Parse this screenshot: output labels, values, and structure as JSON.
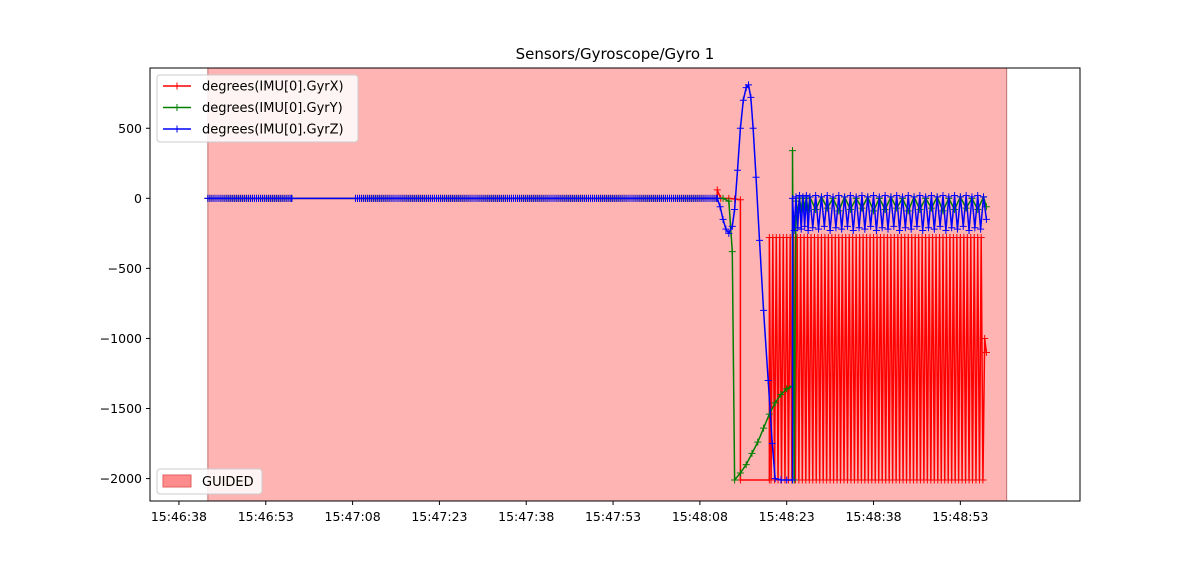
{
  "chart_data": {
    "type": "line",
    "title": "Sensors/Gyroscope/Gyro 1",
    "xlabel": "",
    "ylabel": "",
    "x_ticks": [
      "15:46:38",
      "15:46:53",
      "15:47:08",
      "15:47:23",
      "15:47:38",
      "15:47:53",
      "15:48:08",
      "15:48:23",
      "15:48:38",
      "15:48:53"
    ],
    "y_ticks": [
      "500",
      "0",
      "−500",
      "−1000",
      "−1500",
      "−2000"
    ],
    "ylim": [
      -2160,
      930
    ],
    "series": [
      {
        "name": "degrees(IMU[0].GyrX)",
        "color": "#ff0000",
        "points": [
          [
            0,
            0
          ],
          [
            14.5,
            0
          ],
          [
            25.5,
            0
          ],
          [
            88,
            0
          ],
          [
            88,
            60
          ],
          [
            88.6,
            0
          ],
          [
            90,
            0
          ],
          [
            91,
            -5
          ],
          [
            92,
            -10
          ],
          [
            92,
            -2010
          ],
          [
            97,
            -2010
          ],
          [
            97,
            -280
          ],
          [
            97.3,
            -2010
          ],
          [
            97.6,
            -280
          ],
          [
            97.9,
            -2010
          ],
          [
            98.2,
            -280
          ],
          [
            98.5,
            -2010
          ],
          [
            98.8,
            -280
          ],
          [
            99.1,
            -2010
          ],
          [
            99.4,
            -280
          ],
          [
            99.7,
            -2010
          ],
          [
            100,
            -280
          ],
          [
            100.3,
            -2010
          ],
          [
            100.6,
            -280
          ],
          [
            100.9,
            -2010
          ],
          [
            101.2,
            -280
          ],
          [
            101.5,
            -2010
          ],
          [
            101.8,
            -280
          ],
          [
            102.1,
            -2010
          ],
          [
            102.4,
            -280
          ],
          [
            102.7,
            -2010
          ],
          [
            103,
            -280
          ],
          [
            103.3,
            -2010
          ],
          [
            103.6,
            -280
          ],
          [
            103.9,
            -2010
          ],
          [
            104.2,
            -280
          ],
          [
            104.5,
            -2010
          ],
          [
            104.8,
            -280
          ],
          [
            105.1,
            -2010
          ],
          [
            105.4,
            -280
          ],
          [
            105.7,
            -2010
          ],
          [
            106,
            -280
          ],
          [
            106.3,
            -2010
          ],
          [
            106.6,
            -280
          ],
          [
            106.9,
            -2010
          ],
          [
            107.2,
            -280
          ],
          [
            107.5,
            -2010
          ],
          [
            107.8,
            -280
          ],
          [
            108.1,
            -2010
          ],
          [
            108.4,
            -280
          ],
          [
            108.7,
            -2010
          ],
          [
            109,
            -280
          ],
          [
            109.3,
            -2010
          ],
          [
            109.6,
            -280
          ],
          [
            109.9,
            -2010
          ],
          [
            110.2,
            -280
          ],
          [
            110.5,
            -2010
          ],
          [
            110.8,
            -280
          ],
          [
            111.1,
            -2010
          ],
          [
            111.4,
            -280
          ],
          [
            111.7,
            -2010
          ],
          [
            112,
            -280
          ],
          [
            112.3,
            -2010
          ],
          [
            112.6,
            -280
          ],
          [
            112.9,
            -2010
          ],
          [
            113.2,
            -280
          ],
          [
            113.5,
            -2010
          ],
          [
            113.8,
            -280
          ],
          [
            114.1,
            -2010
          ],
          [
            114.4,
            -280
          ],
          [
            114.7,
            -2010
          ],
          [
            115,
            -280
          ],
          [
            115.3,
            -2010
          ],
          [
            115.6,
            -280
          ],
          [
            115.9,
            -2010
          ],
          [
            116.2,
            -280
          ],
          [
            116.5,
            -2010
          ],
          [
            116.8,
            -280
          ],
          [
            117.1,
            -2010
          ],
          [
            117.4,
            -280
          ],
          [
            117.7,
            -2010
          ],
          [
            118,
            -280
          ],
          [
            118.3,
            -2010
          ],
          [
            118.6,
            -280
          ],
          [
            118.9,
            -2010
          ],
          [
            119.2,
            -280
          ],
          [
            119.5,
            -2010
          ],
          [
            119.8,
            -280
          ],
          [
            120.1,
            -2010
          ],
          [
            120.4,
            -280
          ],
          [
            120.7,
            -2010
          ],
          [
            121,
            -280
          ],
          [
            121.3,
            -2010
          ],
          [
            121.6,
            -280
          ],
          [
            121.9,
            -2010
          ],
          [
            122.2,
            -280
          ],
          [
            122.5,
            -2010
          ],
          [
            122.8,
            -280
          ],
          [
            123.1,
            -2010
          ],
          [
            123.4,
            -280
          ],
          [
            123.7,
            -2010
          ],
          [
            124,
            -280
          ],
          [
            124.3,
            -2010
          ],
          [
            124.6,
            -280
          ],
          [
            124.9,
            -2010
          ],
          [
            125.2,
            -280
          ],
          [
            125.5,
            -2010
          ],
          [
            125.8,
            -280
          ],
          [
            126.1,
            -2010
          ],
          [
            126.4,
            -280
          ],
          [
            126.7,
            -2010
          ],
          [
            127,
            -280
          ],
          [
            127.3,
            -2010
          ],
          [
            127.6,
            -280
          ],
          [
            127.9,
            -2010
          ],
          [
            128.2,
            -280
          ],
          [
            128.5,
            -2010
          ],
          [
            128.8,
            -280
          ],
          [
            129.1,
            -2010
          ],
          [
            129.4,
            -280
          ],
          [
            129.7,
            -2010
          ],
          [
            130,
            -280
          ],
          [
            130.3,
            -2010
          ],
          [
            130.6,
            -280
          ],
          [
            130.9,
            -2010
          ],
          [
            131.2,
            -280
          ],
          [
            131.5,
            -2010
          ],
          [
            131.8,
            -280
          ],
          [
            132.1,
            -2010
          ],
          [
            132.4,
            -280
          ],
          [
            132.7,
            -2010
          ],
          [
            133,
            -280
          ],
          [
            133.3,
            -2010
          ],
          [
            133.6,
            -280
          ],
          [
            133.9,
            -2010
          ],
          [
            134.2,
            -1000
          ],
          [
            134.5,
            -1100
          ]
        ]
      },
      {
        "name": "degrees(IMU[0].GyrY)",
        "color": "#008000",
        "points": [
          [
            0,
            0
          ],
          [
            14.5,
            0
          ],
          [
            25.5,
            0
          ],
          [
            89,
            0
          ],
          [
            90,
            -20
          ],
          [
            90.6,
            -380
          ],
          [
            91,
            -2010
          ],
          [
            92,
            -1960
          ],
          [
            93,
            -1900
          ],
          [
            94,
            -1820
          ],
          [
            95,
            -1740
          ],
          [
            96,
            -1640
          ],
          [
            97,
            -1540
          ],
          [
            98,
            -1460
          ],
          [
            99,
            -1400
          ],
          [
            100,
            -1360
          ],
          [
            101,
            -1340
          ],
          [
            101,
            340
          ],
          [
            101.3,
            -2010
          ],
          [
            101.6,
            -20
          ],
          [
            101.9,
            -100
          ],
          [
            102.2,
            0
          ],
          [
            102.5,
            -80
          ],
          [
            102.8,
            10
          ],
          [
            103.1,
            -60
          ],
          [
            103.4,
            0
          ],
          [
            103.7,
            -90
          ],
          [
            104,
            10
          ],
          [
            105,
            -80
          ],
          [
            106,
            10
          ],
          [
            107,
            -70
          ],
          [
            108,
            0
          ],
          [
            109,
            -90
          ],
          [
            110,
            10
          ],
          [
            111,
            -80
          ],
          [
            112,
            0
          ],
          [
            113,
            -70
          ],
          [
            114,
            10
          ],
          [
            115,
            -90
          ],
          [
            116,
            0
          ],
          [
            117,
            -80
          ],
          [
            118,
            10
          ],
          [
            119,
            -70
          ],
          [
            120,
            0
          ],
          [
            121,
            -90
          ],
          [
            122,
            10
          ],
          [
            123,
            -80
          ],
          [
            124,
            0
          ],
          [
            125,
            -70
          ],
          [
            126,
            10
          ],
          [
            127,
            -90
          ],
          [
            128,
            0
          ],
          [
            129,
            -80
          ],
          [
            130,
            10
          ],
          [
            131,
            -70
          ],
          [
            132,
            0
          ],
          [
            133,
            -80
          ],
          [
            134,
            10
          ],
          [
            134.5,
            -60
          ]
        ]
      },
      {
        "name": "degrees(IMU[0].GyrZ)",
        "color": "#0000ff",
        "points": [
          [
            0,
            0
          ],
          [
            14.5,
            0
          ],
          [
            25.5,
            0
          ],
          [
            88,
            0
          ],
          [
            88.5,
            -60
          ],
          [
            89,
            -150
          ],
          [
            89.5,
            -220
          ],
          [
            90,
            -250
          ],
          [
            90.6,
            -200
          ],
          [
            91,
            -80
          ],
          [
            91.5,
            200
          ],
          [
            92,
            500
          ],
          [
            92.5,
            700
          ],
          [
            93,
            790
          ],
          [
            93.4,
            810
          ],
          [
            93.8,
            720
          ],
          [
            94.2,
            500
          ],
          [
            94.7,
            150
          ],
          [
            95.3,
            -300
          ],
          [
            96,
            -800
          ],
          [
            96.8,
            -1300
          ],
          [
            97.5,
            -1750
          ],
          [
            98,
            -2000
          ],
          [
            99,
            -2010
          ],
          [
            100,
            -2010
          ],
          [
            101,
            -2010
          ],
          [
            101,
            0
          ],
          [
            101.3,
            -230
          ],
          [
            101.6,
            10
          ],
          [
            101.9,
            -210
          ],
          [
            102.2,
            20
          ],
          [
            102.5,
            -220
          ],
          [
            102.8,
            10
          ],
          [
            103.1,
            -200
          ],
          [
            103.4,
            20
          ],
          [
            103.7,
            -230
          ],
          [
            104,
            10
          ],
          [
            104.5,
            -210
          ],
          [
            105,
            20
          ],
          [
            105.5,
            -220
          ],
          [
            106,
            10
          ],
          [
            106.5,
            -200
          ],
          [
            107,
            20
          ],
          [
            107.5,
            -230
          ],
          [
            108,
            10
          ],
          [
            108.5,
            -210
          ],
          [
            109,
            20
          ],
          [
            109.5,
            -220
          ],
          [
            110,
            10
          ],
          [
            110.5,
            -200
          ],
          [
            111,
            20
          ],
          [
            111.5,
            -230
          ],
          [
            112,
            10
          ],
          [
            112.5,
            -210
          ],
          [
            113,
            20
          ],
          [
            113.5,
            -220
          ],
          [
            114,
            10
          ],
          [
            114.5,
            -200
          ],
          [
            115,
            20
          ],
          [
            115.5,
            -230
          ],
          [
            116,
            10
          ],
          [
            116.5,
            -210
          ],
          [
            117,
            20
          ],
          [
            117.5,
            -220
          ],
          [
            118,
            10
          ],
          [
            118.5,
            -200
          ],
          [
            119,
            20
          ],
          [
            119.5,
            -230
          ],
          [
            120,
            10
          ],
          [
            120.5,
            -210
          ],
          [
            121,
            20
          ],
          [
            121.5,
            -220
          ],
          [
            122,
            10
          ],
          [
            122.5,
            -200
          ],
          [
            123,
            20
          ],
          [
            123.5,
            -230
          ],
          [
            124,
            10
          ],
          [
            124.5,
            -210
          ],
          [
            125,
            20
          ],
          [
            125.5,
            -220
          ],
          [
            126,
            10
          ],
          [
            126.5,
            -200
          ],
          [
            127,
            20
          ],
          [
            127.5,
            -230
          ],
          [
            128,
            10
          ],
          [
            128.5,
            -210
          ],
          [
            129,
            20
          ],
          [
            129.5,
            -220
          ],
          [
            130,
            10
          ],
          [
            130.5,
            -200
          ],
          [
            131,
            20
          ],
          [
            131.5,
            -230
          ],
          [
            132,
            10
          ],
          [
            132.5,
            -210
          ],
          [
            133,
            20
          ],
          [
            133.5,
            -220
          ],
          [
            134,
            10
          ],
          [
            134.5,
            -150
          ]
        ]
      }
    ],
    "dense_marker_ranges": [
      [
        0,
        14.5
      ],
      [
        25.5,
        88
      ]
    ],
    "mode_band": {
      "label": "GUIDED",
      "color": "#ff8c8c"
    },
    "legend": {
      "series_position": "top-left",
      "mode_position": "bottom-left"
    },
    "grid": false
  }
}
